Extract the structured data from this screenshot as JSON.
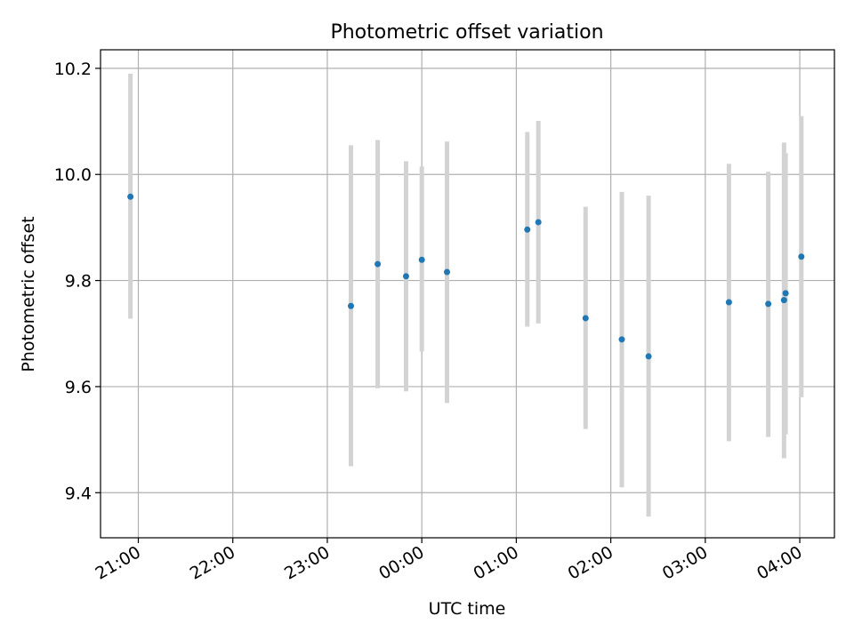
{
  "chart_data": {
    "type": "scatter",
    "title": "Photometric offset variation",
    "xlabel": "UTC time",
    "ylabel": "Photometric offset",
    "x_axis_type": "time",
    "x_ticks": [
      "21:00",
      "22:00",
      "23:00",
      "00:00",
      "01:00",
      "02:00",
      "03:00",
      "04:00"
    ],
    "x_tick_labels_rotated": true,
    "xlim": [
      "20:36",
      "04:22"
    ],
    "ylim": [
      9.315,
      10.235
    ],
    "y_ticks": [
      9.4,
      9.6,
      9.8,
      10.0,
      10.2
    ],
    "y_tick_labels": [
      "9.4",
      "9.6",
      "9.8",
      "10.0",
      "10.2"
    ],
    "grid": true,
    "series": [
      {
        "marker_color": "#1f77b4",
        "errorbar_color": "#d3d3d3",
        "points": [
          {
            "x": "20:55",
            "y": 9.958,
            "ylow": 9.728,
            "yhigh": 10.19
          },
          {
            "x": "23:15",
            "y": 9.752,
            "ylow": 9.45,
            "yhigh": 10.055
          },
          {
            "x": "23:32",
            "y": 9.831,
            "ylow": 9.597,
            "yhigh": 10.065
          },
          {
            "x": "23:50",
            "y": 9.808,
            "ylow": 9.591,
            "yhigh": 10.025
          },
          {
            "x": "00:00",
            "y": 9.839,
            "ylow": 9.666,
            "yhigh": 10.015
          },
          {
            "x": "00:16",
            "y": 9.816,
            "ylow": 9.569,
            "yhigh": 10.062
          },
          {
            "x": "01:07",
            "y": 9.896,
            "ylow": 9.713,
            "yhigh": 10.08
          },
          {
            "x": "01:14",
            "y": 9.91,
            "ylow": 9.719,
            "yhigh": 10.101
          },
          {
            "x": "01:44",
            "y": 9.729,
            "ylow": 9.52,
            "yhigh": 9.939
          },
          {
            "x": "02:07",
            "y": 9.689,
            "ylow": 9.41,
            "yhigh": 9.967
          },
          {
            "x": "02:24",
            "y": 9.657,
            "ylow": 9.355,
            "yhigh": 9.96
          },
          {
            "x": "03:15",
            "y": 9.759,
            "ylow": 9.497,
            "yhigh": 10.02
          },
          {
            "x": "03:40",
            "y": 9.756,
            "ylow": 9.505,
            "yhigh": 10.005
          },
          {
            "x": "03:50",
            "y": 9.763,
            "ylow": 9.465,
            "yhigh": 10.06
          },
          {
            "x": "03:51",
            "y": 9.776,
            "ylow": 9.51,
            "yhigh": 10.04
          },
          {
            "x": "04:01",
            "y": 9.845,
            "ylow": 9.58,
            "yhigh": 10.11
          }
        ]
      }
    ]
  }
}
